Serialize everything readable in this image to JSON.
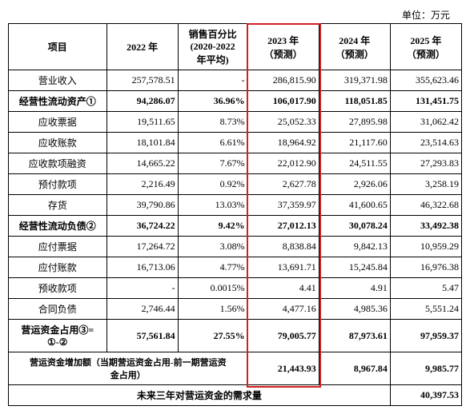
{
  "unit_text": "单位：万元",
  "headers": {
    "item": "项目",
    "y2022": "2022 年",
    "pct": "销售百分比\n(2020-2022\n年平均)",
    "y2023": "2023 年\n（预测）",
    "y2024": "2024 年\n（预测）",
    "y2025": "2025 年\n（预测）"
  },
  "rows": [
    {
      "bold": false,
      "label": "营业收入",
      "y2022": "257,578.51",
      "pct": "-",
      "y2023": "286,815.90",
      "y2024": "319,371.98",
      "y2025": "355,623.46"
    },
    {
      "bold": true,
      "label": "经营性流动资产①",
      "y2022": "94,286.07",
      "pct": "36.96%",
      "y2023": "106,017.90",
      "y2024": "118,051.85",
      "y2025": "131,451.75"
    },
    {
      "bold": false,
      "label": "应收票据",
      "y2022": "19,511.65",
      "pct": "8.73%",
      "y2023": "25,052.33",
      "y2024": "27,895.98",
      "y2025": "31,062.42"
    },
    {
      "bold": false,
      "label": "应收账款",
      "y2022": "18,101.84",
      "pct": "6.61%",
      "y2023": "18,964.92",
      "y2024": "21,117.60",
      "y2025": "23,514.63"
    },
    {
      "bold": false,
      "label": "应收款项融资",
      "y2022": "14,665.22",
      "pct": "7.67%",
      "y2023": "22,012.90",
      "y2024": "24,511.55",
      "y2025": "27,293.83"
    },
    {
      "bold": false,
      "label": "预付款项",
      "y2022": "2,216.49",
      "pct": "0.92%",
      "y2023": "2,627.78",
      "y2024": "2,926.06",
      "y2025": "3,258.19"
    },
    {
      "bold": false,
      "label": "存货",
      "y2022": "39,790.86",
      "pct": "13.03%",
      "y2023": "37,359.97",
      "y2024": "41,600.65",
      "y2025": "46,322.68"
    },
    {
      "bold": true,
      "label": "经营性流动负债②",
      "y2022": "36,724.22",
      "pct": "9.42%",
      "y2023": "27,012.13",
      "y2024": "30,078.24",
      "y2025": "33,492.38"
    },
    {
      "bold": false,
      "label": "应付票据",
      "y2022": "17,264.72",
      "pct": "3.08%",
      "y2023": "8,838.84",
      "y2024": "9,842.13",
      "y2025": "10,959.29"
    },
    {
      "bold": false,
      "label": "应付账款",
      "y2022": "16,713.06",
      "pct": "4.77%",
      "y2023": "13,691.71",
      "y2024": "15,245.84",
      "y2025": "16,976.38"
    },
    {
      "bold": false,
      "label": "预收款项",
      "y2022": "-",
      "pct": "0.0015%",
      "y2023": "4.41",
      "y2024": "4.91",
      "y2025": "5.47"
    },
    {
      "bold": false,
      "label": "合同负债",
      "y2022": "2,746.44",
      "pct": "1.56%",
      "y2023": "4,477.16",
      "y2024": "4,985.36",
      "y2025": "5,551.24"
    },
    {
      "bold": true,
      "label": "营运资金占用③=\n①-②",
      "y2022": "57,561.84",
      "pct": "27.55%",
      "y2023": "79,005.77",
      "y2024": "87,973.61",
      "y2025": "97,959.37"
    }
  ],
  "delta_row": {
    "label": "营运资金增加额（当期营运资金占用-前一期营运资\n金占用）",
    "y2023": "21,443.93",
    "y2024": "8,967.84",
    "y2025": "9,985.77"
  },
  "footer": {
    "label": "未来三年对营运资金的需求量",
    "value": "40,397.53"
  },
  "highlight": {
    "border_color": "#d02020"
  }
}
